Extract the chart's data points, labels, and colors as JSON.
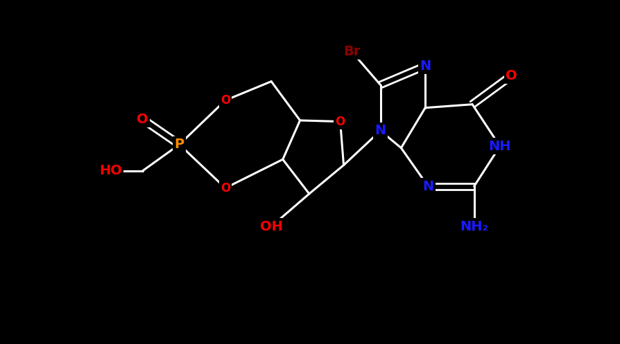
{
  "background_color": "#000000",
  "atom_colors": {
    "N": "#1a1aff",
    "O": "#ff0000",
    "Br": "#8b0000",
    "P": "#ff8c00",
    "NH": "#1a1aff",
    "OH": "#ff0000",
    "HO": "#ff0000",
    "NH2": "#1a1aff"
  },
  "figsize": [
    8.95,
    4.97
  ],
  "dpi": 100,
  "bond_color": "#ffffff",
  "bond_lw": 2.2,
  "font_size": 14,
  "font_size_small": 12
}
